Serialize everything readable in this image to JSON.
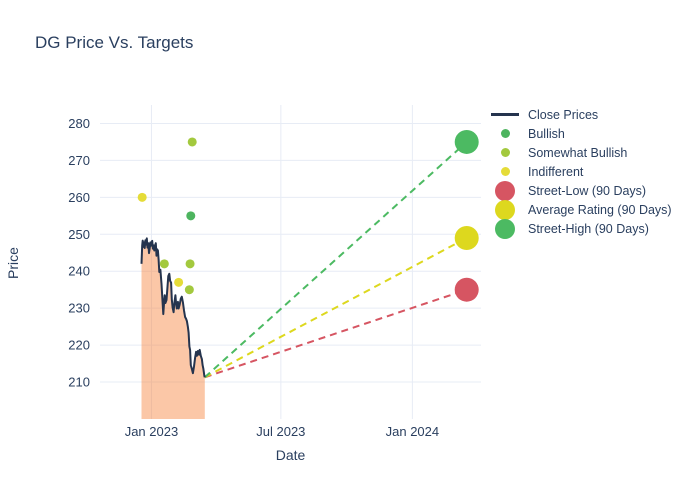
{
  "chart_data": {
    "type": "line+scatter",
    "title": "DG Price Vs. Targets",
    "xlabel": "Date",
    "ylabel": "Price",
    "grid": true,
    "legend_position": "right",
    "x_axis": {
      "unit": "days since 2023-01-01",
      "range": [
        -72,
        461
      ],
      "ticks": [
        {
          "v": 0,
          "label": "Jan 2023"
        },
        {
          "v": 181,
          "label": "Jul 2023"
        },
        {
          "v": 365,
          "label": "Jan 2024"
        }
      ]
    },
    "y_axis": {
      "range": [
        200,
        285
      ],
      "ticks": [
        210,
        220,
        230,
        240,
        250,
        260,
        270,
        280
      ]
    },
    "close_prices": {
      "name": "Close Prices",
      "line_color": "#25344e",
      "fill_color": "rgba(246,130,60,0.45)",
      "points": [
        [
          -14,
          242.0
        ],
        [
          -13,
          247.0
        ],
        [
          -12.3,
          248.3
        ],
        [
          -11.5,
          246.6
        ],
        [
          -10.5,
          247.8
        ],
        [
          -9.5,
          246.3
        ],
        [
          -8.5,
          248.4
        ],
        [
          -7.5,
          247.2
        ],
        [
          -6.5,
          248.9
        ],
        [
          -5.5,
          246.4
        ],
        [
          -4.5,
          247.6
        ],
        [
          -3.5,
          244.9
        ],
        [
          -2.5,
          246.2
        ],
        [
          -1.5,
          247.8
        ],
        [
          -0.5,
          246.9
        ],
        [
          1,
          248.2
        ],
        [
          2,
          246.1
        ],
        [
          3,
          247.0
        ],
        [
          4,
          245.6
        ],
        [
          5,
          246.8
        ],
        [
          6,
          247.6
        ],
        [
          7,
          244.2
        ],
        [
          8,
          245.9
        ],
        [
          9,
          245.6
        ],
        [
          10,
          243.2
        ],
        [
          11,
          239.8
        ],
        [
          12.5,
          240.4
        ],
        [
          14,
          236.6
        ],
        [
          15.5,
          232.0
        ],
        [
          16.5,
          228.4
        ],
        [
          17.5,
          231.2
        ],
        [
          18.5,
          233.5
        ],
        [
          19.5,
          231.4
        ],
        [
          21,
          232.2
        ],
        [
          22.5,
          236.2
        ],
        [
          23.5,
          238.7
        ],
        [
          25,
          239.3
        ],
        [
          26,
          237.4
        ],
        [
          27.5,
          236.9
        ],
        [
          28.5,
          232.4
        ],
        [
          29.5,
          230.2
        ],
        [
          31,
          228.9
        ],
        [
          32,
          231.2
        ],
        [
          33.5,
          233.5
        ],
        [
          34.5,
          231.2
        ],
        [
          35.5,
          229.9
        ],
        [
          37,
          231.7
        ],
        [
          38,
          229.9
        ],
        [
          39.5,
          231.0
        ],
        [
          41,
          232.6
        ],
        [
          42.5,
          233.1
        ],
        [
          44,
          231.6
        ],
        [
          45.5,
          229.4
        ],
        [
          47,
          227.6
        ],
        [
          48.5,
          227.1
        ],
        [
          49.5,
          226.5
        ],
        [
          51,
          224.9
        ],
        [
          52,
          223.4
        ],
        [
          53,
          219.6
        ],
        [
          54,
          218.7
        ],
        [
          55,
          214.6
        ],
        [
          56.5,
          213.5
        ],
        [
          58,
          212.4
        ],
        [
          59.5,
          214.2
        ],
        [
          61,
          216.6
        ],
        [
          62.5,
          218.2
        ],
        [
          63.5,
          217.1
        ],
        [
          65,
          218.4
        ],
        [
          66.5,
          217.4
        ],
        [
          67.5,
          218.7
        ],
        [
          69,
          217.1
        ],
        [
          70.5,
          216.2
        ],
        [
          71.5,
          214.6
        ],
        [
          72.5,
          213.7
        ],
        [
          74,
          211.6
        ],
        [
          74.6,
          211.3
        ]
      ]
    },
    "ratings": [
      {
        "name": "Bullish",
        "color": "#4db45f",
        "points": [
          [
            55,
            255
          ]
        ]
      },
      {
        "name": "Somewhat Bullish",
        "color": "#a3c93e",
        "points": [
          [
            57,
            275
          ],
          [
            18,
            242
          ],
          [
            54,
            242
          ],
          [
            53,
            235
          ]
        ]
      },
      {
        "name": "Indifferent",
        "color": "#e5dc38",
        "points": [
          [
            -13,
            260
          ],
          [
            38,
            237
          ]
        ]
      }
    ],
    "projection_start": {
      "day": 74.6,
      "price": 211.3
    },
    "targets": [
      {
        "name": "Street-Low (90 Days)",
        "color": "#d65562",
        "value": 235,
        "day": 441
      },
      {
        "name": "Average Rating (90 Days)",
        "color": "#ddd81e",
        "value": 249,
        "day": 441
      },
      {
        "name": "Street-High (90 Days)",
        "color": "#4cba62",
        "value": 275,
        "day": 441
      }
    ],
    "legend": [
      {
        "label": "Close Prices",
        "marker": "line",
        "color": "#25344e",
        "size": 0
      },
      {
        "label": "Bullish",
        "marker": "dot",
        "color": "#4db45f",
        "size": 9
      },
      {
        "label": "Somewhat Bullish",
        "marker": "dot",
        "color": "#a3c93e",
        "size": 9
      },
      {
        "label": "Indifferent",
        "marker": "dot",
        "color": "#e5dc38",
        "size": 9
      },
      {
        "label": "Street-Low (90 Days)",
        "marker": "dot",
        "color": "#d65562",
        "size": 20
      },
      {
        "label": "Average Rating (90 Days)",
        "marker": "dot",
        "color": "#ddd81e",
        "size": 20
      },
      {
        "label": "Street-High (90 Days)",
        "marker": "dot",
        "color": "#4cba62",
        "size": 20
      }
    ],
    "style": {
      "text_color": "#2a3f5f",
      "grid_color": "#e7ecf5",
      "dash_pattern": "7 5",
      "marker_radius_target": 12,
      "marker_radius_rating": 4.5
    }
  }
}
